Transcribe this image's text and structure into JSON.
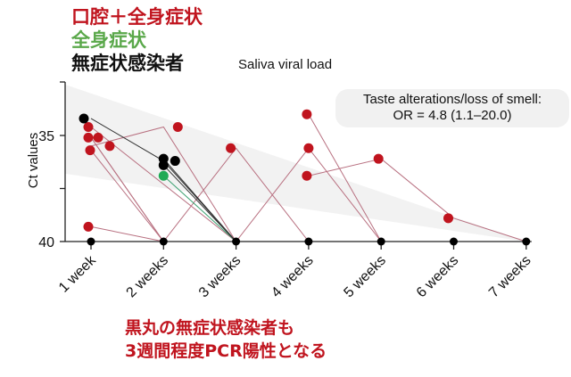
{
  "legend": {
    "oral_systemic": "口腔＋全身症状",
    "systemic": "全身症状",
    "asymptomatic": "無症状感染者"
  },
  "annotation": {
    "line1": "Taste alterations/loss of smell:",
    "line2": "OR = 4.8 (1.1–20.0)"
  },
  "caption": {
    "line1": "黒丸の無症状感染者も",
    "line2": "3週間程度PCR陽性となる"
  },
  "colors": {
    "red": "#c0141e",
    "green": "#1faa55",
    "black": "#000000",
    "red_line": "#b87080",
    "band": "#f2f2f2"
  },
  "chart_data": {
    "type": "line",
    "title": "Saliva viral load",
    "xlabel": "",
    "ylabel": "Ct values",
    "categories": [
      "1 week",
      "2 weeks",
      "3 weeks",
      "4 weeks",
      "5 weeks",
      "6 weeks",
      "7 weeks"
    ],
    "yticks": [
      35,
      40
    ],
    "ylim": [
      32.5,
      40
    ],
    "y_inverted": true,
    "grid": false,
    "series": [
      {
        "name": "口腔＋全身症状",
        "color": "#c0141e",
        "points": [
          [
            1,
            34.6
          ],
          [
            3,
            40
          ]
        ]
      },
      {
        "name": "口腔＋全身症状",
        "color": "#c0141e",
        "points": [
          [
            1,
            35.1
          ],
          [
            2,
            40
          ]
        ]
      },
      {
        "name": "口腔＋全身症状",
        "color": "#c0141e",
        "points": [
          [
            1,
            35.1
          ],
          [
            2,
            40
          ]
        ]
      },
      {
        "name": "口腔＋全身症状",
        "color": "#c0141e",
        "points": [
          [
            1,
            35.5
          ],
          [
            2,
            34.6
          ],
          [
            3,
            40
          ]
        ]
      },
      {
        "name": "口腔＋全身症状",
        "color": "#c0141e",
        "points": [
          [
            1,
            35.7
          ],
          [
            2,
            40
          ]
        ]
      },
      {
        "name": "口腔＋全身症状",
        "color": "#c0141e",
        "points": [
          [
            1,
            39.3
          ],
          [
            2,
            40
          ]
        ]
      },
      {
        "name": "口腔＋全身症状",
        "color": "#c0141e",
        "points": [
          [
            2,
            40
          ],
          [
            3,
            35.6
          ],
          [
            4,
            40
          ]
        ]
      },
      {
        "name": "口腔＋全身症状",
        "color": "#c0141e",
        "points": [
          [
            3,
            40
          ],
          [
            4,
            35.6
          ],
          [
            5,
            40
          ]
        ]
      },
      {
        "name": "口腔＋全身症状",
        "color": "#c0141e",
        "points": [
          [
            4,
            34.0
          ],
          [
            5,
            40
          ]
        ]
      },
      {
        "name": "口腔＋全身症状",
        "color": "#c0141e",
        "points": [
          [
            4,
            36.9
          ],
          [
            5,
            36.1
          ],
          [
            6,
            38.9
          ],
          [
            7,
            40
          ]
        ]
      },
      {
        "name": "全身症状",
        "color": "#1faa55",
        "points": [
          [
            2,
            36.9
          ],
          [
            3,
            40
          ]
        ]
      },
      {
        "name": "無症状感染者",
        "color": "#000000",
        "points": [
          [
            1,
            34.2
          ],
          [
            2,
            36.2
          ],
          [
            3,
            40
          ]
        ]
      },
      {
        "name": "無症状感染者",
        "color": "#000000",
        "points": [
          [
            2,
            36.1
          ],
          [
            3,
            40
          ]
        ]
      },
      {
        "name": "無症状感染者",
        "color": "#000000",
        "points": [
          [
            2,
            36.4
          ],
          [
            3,
            40
          ]
        ]
      }
    ],
    "baseline_points_at_40": [
      1,
      2,
      3,
      4,
      5,
      6,
      7
    ],
    "annotations": [
      "Taste alterations/loss of smell: OR = 4.8 (1.1–20.0)"
    ],
    "shaded_band": {
      "upper": [
        [
          0.7,
          32.6
        ],
        [
          7,
          40
        ]
      ],
      "lower": [
        [
          0.7,
          36.8
        ],
        [
          7,
          40
        ]
      ]
    }
  }
}
